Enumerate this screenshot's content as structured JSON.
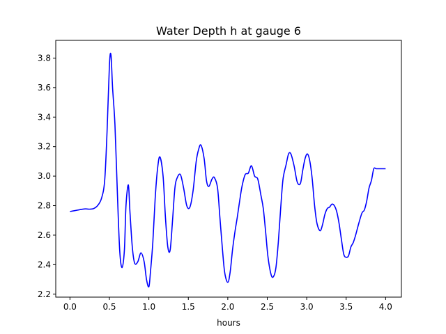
{
  "chart_data": {
    "type": "line",
    "title": "Water Depth h at gauge 6",
    "xlabel": "hours",
    "ylabel": "",
    "xlim": [
      -0.18,
      4.2
    ],
    "ylim": [
      2.18,
      3.92
    ],
    "xticks": [
      0.0,
      0.5,
      1.0,
      1.5,
      2.0,
      2.5,
      3.0,
      3.5,
      4.0
    ],
    "xtick_labels": [
      "0.0",
      "0.5",
      "1.0",
      "1.5",
      "2.0",
      "2.5",
      "3.0",
      "3.5",
      "4.0"
    ],
    "yticks": [
      2.2,
      2.4,
      2.6,
      2.8,
      3.0,
      3.2,
      3.4,
      3.6,
      3.8
    ],
    "ytick_labels": [
      "2.2",
      "2.4",
      "2.6",
      "2.8",
      "3.0",
      "3.2",
      "3.4",
      "3.6",
      "3.8"
    ],
    "grid": false,
    "series": [
      {
        "color": "#0000ff",
        "x": [
          0.0,
          0.05,
          0.1,
          0.15,
          0.2,
          0.25,
          0.3,
          0.35,
          0.4,
          0.44,
          0.47,
          0.5,
          0.52,
          0.54,
          0.57,
          0.6,
          0.63,
          0.66,
          0.69,
          0.71,
          0.74,
          0.76,
          0.79,
          0.82,
          0.86,
          0.9,
          0.94,
          0.97,
          1.0,
          1.02,
          1.05,
          1.08,
          1.11,
          1.14,
          1.18,
          1.21,
          1.24,
          1.27,
          1.3,
          1.33,
          1.36,
          1.4,
          1.44,
          1.48,
          1.52,
          1.56,
          1.6,
          1.63,
          1.66,
          1.7,
          1.73,
          1.76,
          1.8,
          1.83,
          1.87,
          1.9,
          1.93,
          1.96,
          2.0,
          2.03,
          2.06,
          2.09,
          2.12,
          2.15,
          2.18,
          2.22,
          2.26,
          2.3,
          2.34,
          2.38,
          2.42,
          2.45,
          2.48,
          2.51,
          2.55,
          2.58,
          2.61,
          2.64,
          2.67,
          2.7,
          2.74,
          2.77,
          2.8,
          2.84,
          2.88,
          2.92,
          2.95,
          2.98,
          3.01,
          3.04,
          3.07,
          3.1,
          3.13,
          3.17,
          3.2,
          3.23,
          3.26,
          3.29,
          3.32,
          3.35,
          3.38,
          3.41,
          3.44,
          3.47,
          3.5,
          3.53,
          3.56,
          3.59,
          3.62,
          3.66,
          3.7,
          3.73,
          3.76,
          3.79,
          3.82,
          3.85,
          3.88,
          3.91,
          3.94,
          3.97,
          4.0
        ],
        "y": [
          2.76,
          2.765,
          2.77,
          2.775,
          2.778,
          2.776,
          2.78,
          2.8,
          2.85,
          2.97,
          3.3,
          3.75,
          3.82,
          3.6,
          3.35,
          2.9,
          2.5,
          2.38,
          2.5,
          2.8,
          2.94,
          2.76,
          2.52,
          2.41,
          2.42,
          2.48,
          2.42,
          2.3,
          2.25,
          2.35,
          2.55,
          2.85,
          3.05,
          3.13,
          3.0,
          2.72,
          2.52,
          2.5,
          2.7,
          2.92,
          2.99,
          3.01,
          2.92,
          2.8,
          2.79,
          2.9,
          3.1,
          3.18,
          3.21,
          3.12,
          2.97,
          2.93,
          2.98,
          2.99,
          2.92,
          2.72,
          2.52,
          2.35,
          2.28,
          2.35,
          2.5,
          2.62,
          2.72,
          2.83,
          2.93,
          3.01,
          3.02,
          3.07,
          3.0,
          2.98,
          2.87,
          2.78,
          2.62,
          2.45,
          2.33,
          2.32,
          2.38,
          2.55,
          2.78,
          2.98,
          3.08,
          3.15,
          3.15,
          3.07,
          2.96,
          2.95,
          3.04,
          3.12,
          3.15,
          3.1,
          2.98,
          2.8,
          2.68,
          2.63,
          2.67,
          2.74,
          2.78,
          2.79,
          2.81,
          2.8,
          2.76,
          2.68,
          2.57,
          2.47,
          2.45,
          2.46,
          2.52,
          2.55,
          2.6,
          2.68,
          2.75,
          2.77,
          2.83,
          2.92,
          2.97,
          3.05,
          3.05,
          3.05,
          3.05,
          3.05,
          3.05
        ]
      }
    ]
  }
}
